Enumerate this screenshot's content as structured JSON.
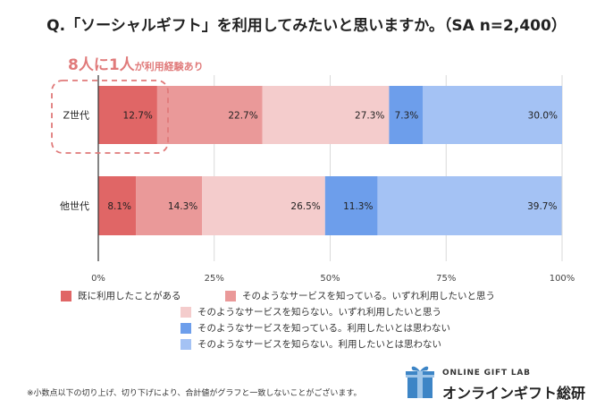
{
  "chart_data": {
    "type": "bar",
    "orientation": "horizontal",
    "stacked": true,
    "title": "Q.「ソーシャルギフト」を利用してみたいと思いますか。（SA n=2,400）",
    "categories": [
      "Z世代",
      "他世代"
    ],
    "series": [
      {
        "name": "既に利用したことがある",
        "values": [
          12.7,
          8.1
        ],
        "color": "#e06666"
      },
      {
        "name": "そのようなサービスを知っている。いずれ利用したいと思う",
        "values": [
          22.7,
          14.3
        ],
        "color": "#ea9999"
      },
      {
        "name": "そのようなサービスを知らない。いずれ利用したいと思う",
        "values": [
          27.3,
          26.5
        ],
        "color": "#f4cccc"
      },
      {
        "name": "そのようなサービスを知っている。利用したいとは思わない",
        "values": [
          7.3,
          11.3
        ],
        "color": "#6d9eeb"
      },
      {
        "name": "そのようなサービスを知らない。利用したいとは思わない",
        "values": [
          30.0,
          39.7
        ],
        "color": "#a4c2f4"
      }
    ],
    "x_ticks": [
      "0%",
      "25%",
      "50%",
      "75%",
      "100%"
    ],
    "xlim": [
      0,
      100
    ],
    "annotation": {
      "prefix": "8人に1人",
      "suffix": "が利用経験あり",
      "target": "Z世代"
    },
    "legend_position": "bottom"
  },
  "footnote": "※小数点以下の切り上げ、切り下げにより、合計値がグラフと一致しないことがございます。",
  "brand": {
    "sub": "ONLINE GIFT LAB",
    "main": "オンラインギフト総研"
  },
  "colors": {
    "gift_icon": "#3d85c6",
    "gift_ribbon": "#9fc5e8",
    "callout": "#e07a7a"
  }
}
